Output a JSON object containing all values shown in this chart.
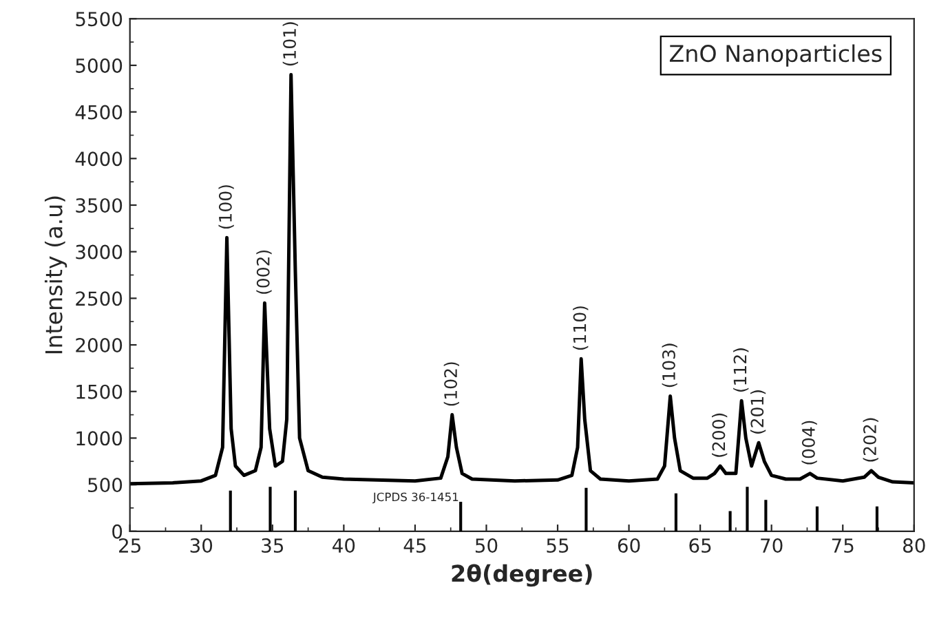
{
  "chart_data": {
    "type": "line",
    "xlabel": "2θ(degree)",
    "ylabel": "Intensity (a.u)",
    "xlim": [
      25,
      80
    ],
    "xticks": [
      25,
      30,
      35,
      40,
      45,
      50,
      55,
      60,
      65,
      70,
      75,
      80
    ],
    "ylim": [
      0,
      5500
    ],
    "yticks": [
      0,
      500,
      1000,
      1500,
      2000,
      2500,
      3000,
      3500,
      4000,
      4500,
      5000,
      5500
    ],
    "grid": false,
    "legend": false,
    "marker": "none",
    "line_style": "solid",
    "series": [
      {
        "color": "#000000",
        "x": [
          25,
          28,
          30,
          31,
          31.5,
          31.8,
          32.1,
          32.4,
          33,
          33.8,
          34.2,
          34.45,
          34.8,
          35.2,
          35.7,
          36.0,
          36.3,
          36.6,
          36.9,
          37.5,
          38.5,
          40,
          45,
          46.8,
          47.3,
          47.6,
          47.9,
          48.3,
          49,
          52,
          55,
          56,
          56.4,
          56.65,
          56.9,
          57.3,
          58,
          60,
          62,
          62.5,
          62.9,
          63.2,
          63.6,
          64.5,
          65.5,
          66,
          66.4,
          66.8,
          67.5,
          67.9,
          68.2,
          68.6,
          69.1,
          69.5,
          70,
          71,
          72,
          72.7,
          73.2,
          75,
          76.5,
          77,
          77.5,
          78.5,
          80
        ],
        "values": [
          510,
          520,
          540,
          600,
          900,
          3150,
          1100,
          700,
          600,
          650,
          900,
          2450,
          1100,
          700,
          750,
          1200,
          4900,
          2800,
          1000,
          650,
          580,
          560,
          540,
          570,
          800,
          1250,
          900,
          620,
          560,
          540,
          550,
          600,
          900,
          1850,
          1200,
          650,
          560,
          540,
          560,
          700,
          1450,
          1000,
          650,
          570,
          570,
          620,
          700,
          620,
          620,
          1400,
          1000,
          700,
          950,
          750,
          600,
          560,
          560,
          620,
          570,
          540,
          580,
          650,
          580,
          530,
          520
        ]
      },
      {
        "type": "bar",
        "color": "#000000",
        "x": [
          32.05,
          34.84,
          36.6,
          48.2,
          57.0,
          63.3,
          67.1,
          68.3,
          69.6,
          73.2,
          77.4
        ],
        "values": [
          430,
          470,
          430,
          310,
          460,
          400,
          210,
          470,
          330,
          260,
          260
        ]
      }
    ],
    "annotations": [
      "ZnO Nanoparticles",
      "JCPDS 36-1451",
      {
        "text": "(100)",
        "x": 31.8,
        "y": 3150
      },
      {
        "text": "(002)",
        "x": 34.45,
        "y": 2450
      },
      {
        "text": "(101)",
        "x": 36.3,
        "y": 4900
      },
      {
        "text": "(102)",
        "x": 47.6,
        "y": 1250
      },
      {
        "text": "(110)",
        "x": 56.65,
        "y": 1850
      },
      {
        "text": "(103)",
        "x": 62.9,
        "y": 1450
      },
      {
        "text": "(200)",
        "x": 66.4,
        "y": 700
      },
      {
        "text": "(112)",
        "x": 67.9,
        "y": 1400
      },
      {
        "text": "(201)",
        "x": 69.1,
        "y": 950
      },
      {
        "text": "(004)",
        "x": 72.7,
        "y": 620
      },
      {
        "text": "(202)",
        "x": 77.0,
        "y": 650
      }
    ]
  }
}
